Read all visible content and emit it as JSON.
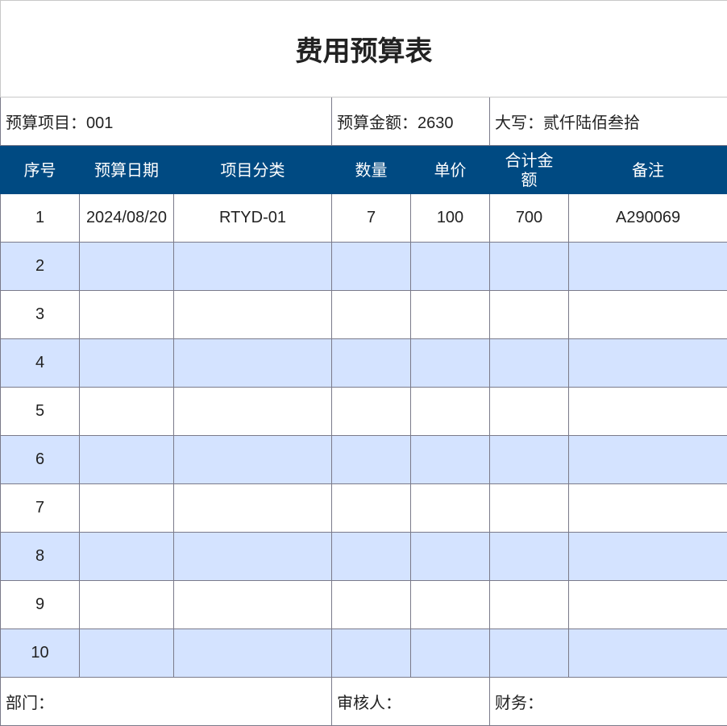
{
  "title": "费用预算表",
  "info": {
    "project_label": "预算项目：",
    "project_value": "001",
    "amount_label": "预算金额：",
    "amount_value": "2630",
    "caps_label": "大写：",
    "caps_value": "贰仟陆佰叁拾"
  },
  "columns": [
    "序号",
    "预算日期",
    "项目分类",
    "数量",
    "单价",
    "合计金\n额",
    "备注"
  ],
  "rows": [
    [
      "1",
      "2024/08/20",
      "RTYD-01",
      "7",
      "100",
      "700",
      "A290069"
    ],
    [
      "2",
      "",
      "",
      "",
      "",
      "",
      ""
    ],
    [
      "3",
      "",
      "",
      "",
      "",
      "",
      ""
    ],
    [
      "4",
      "",
      "",
      "",
      "",
      "",
      ""
    ],
    [
      "5",
      "",
      "",
      "",
      "",
      "",
      ""
    ],
    [
      "6",
      "",
      "",
      "",
      "",
      "",
      ""
    ],
    [
      "7",
      "",
      "",
      "",
      "",
      "",
      ""
    ],
    [
      "8",
      "",
      "",
      "",
      "",
      "",
      ""
    ],
    [
      "9",
      "",
      "",
      "",
      "",
      "",
      ""
    ],
    [
      "10",
      "",
      "",
      "",
      "",
      "",
      ""
    ]
  ],
  "footer": {
    "dept": "部门：",
    "reviewer": "审核人：",
    "finance": "财务："
  },
  "colors": {
    "header": "#004a82",
    "alt_row": "#d4e3ff"
  }
}
